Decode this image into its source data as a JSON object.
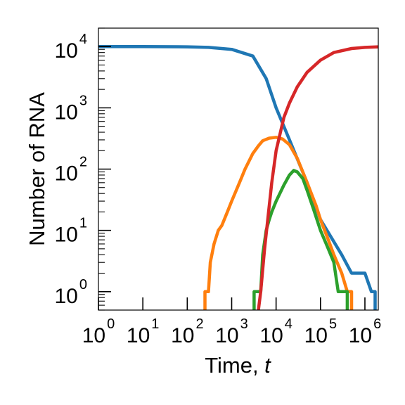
{
  "chart_data": {
    "type": "line",
    "title": "",
    "xlabel": "Time, ",
    "xlabel_var": "t",
    "ylabel": "Number of RNA",
    "xscale": "log",
    "yscale": "log",
    "xlim": [
      1,
      2000000
    ],
    "ylim": [
      0.5,
      20000
    ],
    "grid": false,
    "legend": "none",
    "x_ticks": [
      {
        "base": "10",
        "exp": "0"
      },
      {
        "base": "10",
        "exp": "1"
      },
      {
        "base": "10",
        "exp": "2"
      },
      {
        "base": "10",
        "exp": "3"
      },
      {
        "base": "10",
        "exp": "4"
      },
      {
        "base": "10",
        "exp": "5"
      },
      {
        "base": "10",
        "exp": "6"
      }
    ],
    "y_ticks": [
      {
        "base": "10",
        "exp": "0"
      },
      {
        "base": "10",
        "exp": "1"
      },
      {
        "base": "10",
        "exp": "2"
      },
      {
        "base": "10",
        "exp": "3"
      },
      {
        "base": "10",
        "exp": "4"
      }
    ],
    "series": [
      {
        "color": "#1f77b4",
        "points": [
          [
            1,
            10000
          ],
          [
            10,
            9990
          ],
          [
            100,
            9900
          ],
          [
            300,
            9700
          ],
          [
            1000,
            9000
          ],
          [
            3000,
            7000
          ],
          [
            6000,
            3000
          ],
          [
            10000,
            1000
          ],
          [
            20000,
            300
          ],
          [
            50000,
            60
          ],
          [
            100000,
            15
          ],
          [
            300000,
            4
          ],
          [
            500000,
            2
          ],
          [
            1000000,
            2
          ],
          [
            1400000,
            1
          ],
          [
            1700000,
            1
          ],
          [
            1700000,
            0.5
          ]
        ]
      },
      {
        "color": "#ff7f0e",
        "points": [
          [
            250,
            0.5
          ],
          [
            250,
            1
          ],
          [
            300,
            1
          ],
          [
            330,
            3
          ],
          [
            400,
            6
          ],
          [
            500,
            10
          ],
          [
            600,
            12
          ],
          [
            800,
            20
          ],
          [
            1000,
            30
          ],
          [
            1500,
            60
          ],
          [
            2000,
            100
          ],
          [
            3000,
            180
          ],
          [
            4000,
            240
          ],
          [
            5000,
            290
          ],
          [
            7000,
            320
          ],
          [
            10000,
            330
          ],
          [
            14000,
            310
          ],
          [
            20000,
            250
          ],
          [
            30000,
            150
          ],
          [
            50000,
            60
          ],
          [
            80000,
            25
          ],
          [
            100000,
            15
          ],
          [
            150000,
            7
          ],
          [
            200000,
            4
          ],
          [
            300000,
            2
          ],
          [
            400000,
            1
          ],
          [
            500000,
            1
          ],
          [
            500000,
            0.5
          ]
        ]
      },
      {
        "color": "#2ca02c",
        "points": [
          [
            3200,
            0.5
          ],
          [
            3200,
            1
          ],
          [
            4500,
            1
          ],
          [
            5000,
            4
          ],
          [
            6000,
            10
          ],
          [
            7000,
            15
          ],
          [
            8000,
            20
          ],
          [
            10000,
            30
          ],
          [
            15000,
            55
          ],
          [
            20000,
            80
          ],
          [
            25000,
            95
          ],
          [
            30000,
            90
          ],
          [
            40000,
            70
          ],
          [
            50000,
            45
          ],
          [
            70000,
            22
          ],
          [
            100000,
            10
          ],
          [
            150000,
            5
          ],
          [
            200000,
            3
          ],
          [
            250000,
            1
          ],
          [
            400000,
            1
          ],
          [
            400000,
            0.5
          ]
        ]
      },
      {
        "color": "#d62728",
        "points": [
          [
            4000,
            0.5
          ],
          [
            4500,
            1
          ],
          [
            5500,
            5
          ],
          [
            6500,
            15
          ],
          [
            8000,
            60
          ],
          [
            10000,
            200
          ],
          [
            15000,
            700
          ],
          [
            20000,
            1200
          ],
          [
            30000,
            2200
          ],
          [
            50000,
            3800
          ],
          [
            100000,
            6000
          ],
          [
            200000,
            8000
          ],
          [
            500000,
            9300
          ],
          [
            1000000,
            9700
          ],
          [
            2000000,
            9900
          ]
        ]
      }
    ]
  }
}
